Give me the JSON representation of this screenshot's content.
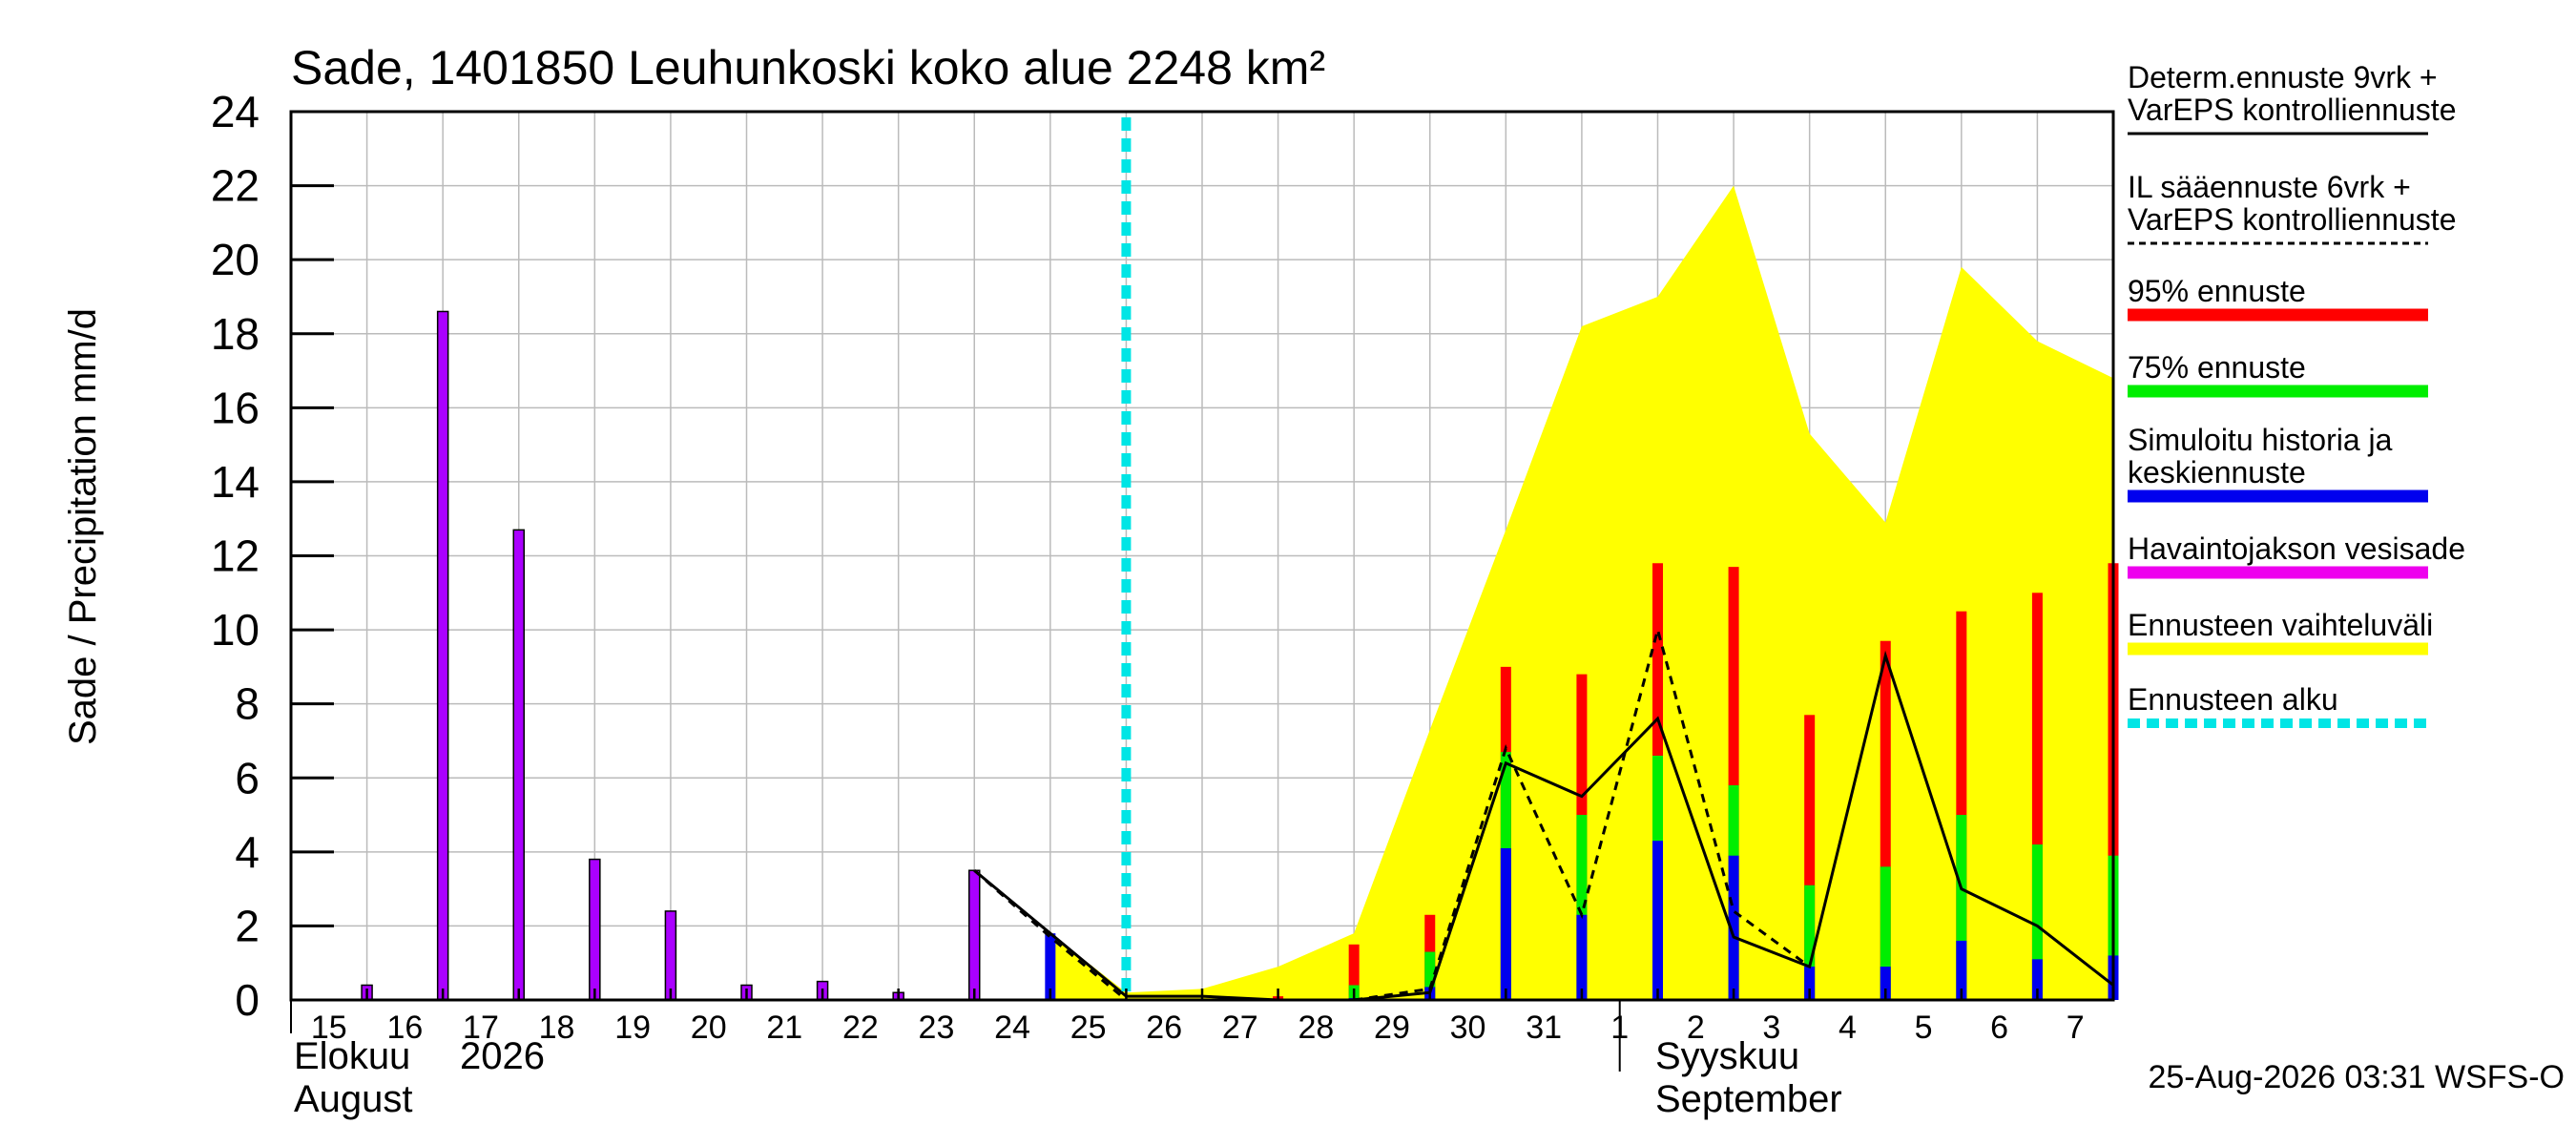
{
  "chart_data": {
    "type": "bar",
    "title": "Sade, 1401850 Leuhunkoski koko alue 2248 km²",
    "ylabel": "Sade / Precipitation   mm/d",
    "ylim": [
      0,
      24
    ],
    "yticks": [
      "0",
      "2",
      "4",
      "6",
      "8",
      "10",
      "12",
      "14",
      "16",
      "18",
      "20",
      "22",
      "24"
    ],
    "grid": true,
    "legend_position": "right",
    "x_day_labels": [
      "15",
      "16",
      "17",
      "18",
      "19",
      "20",
      "21",
      "22",
      "23",
      "24",
      "25",
      "26",
      "27",
      "28",
      "29",
      "30",
      "31",
      "1",
      "2",
      "3",
      "4",
      "5",
      "6",
      "7"
    ],
    "month_labels": {
      "aug_fi": "Elokuu",
      "aug_en": "August",
      "year": "2026",
      "sep_fi": "Syyskuu",
      "sep_en": "September"
    },
    "forecast_start": "25",
    "timestamp": "25-Aug-2026 03:31 WSFS-O",
    "observed_precipitation": {
      "days": [
        "15",
        "16",
        "17",
        "18",
        "19",
        "20",
        "21",
        "22",
        "23"
      ],
      "values": [
        0.4,
        18.6,
        12.7,
        3.8,
        2.4,
        0.4,
        0.5,
        0.2,
        3.5
      ]
    },
    "simulated_mean": {
      "days": [
        "24",
        "28",
        "29",
        "30",
        "31",
        "1",
        "2",
        "3",
        "4",
        "5",
        "6",
        "7",
        "8"
      ],
      "values": [
        1.8,
        0.05,
        0.35,
        4.1,
        2.3,
        4.3,
        3.9,
        0.9,
        0.9,
        1.6,
        1.1,
        0.4,
        1.2
      ]
    },
    "forecast_75": {
      "days": [
        "28",
        "29",
        "30",
        "31",
        "1",
        "2",
        "3",
        "4",
        "5",
        "6",
        "7",
        "8"
      ],
      "values": [
        0.4,
        1.3,
        6.7,
        5.0,
        6.6,
        5.8,
        3.1,
        3.6,
        5.0,
        4.2,
        3.6,
        3.9
      ]
    },
    "forecast_95": {
      "days": [
        "27",
        "28",
        "29",
        "30",
        "31",
        "1",
        "2",
        "3",
        "4",
        "5",
        "6",
        "7",
        "8"
      ],
      "values": [
        0.1,
        1.5,
        2.3,
        9.0,
        8.8,
        11.8,
        11.7,
        7.7,
        9.7,
        10.5,
        11.0,
        11.3,
        11.8
      ]
    },
    "forecast_range_upper": {
      "days": [
        "24",
        "25",
        "26",
        "27",
        "28",
        "29",
        "30",
        "31",
        "1",
        "2",
        "3",
        "4",
        "5",
        "6",
        "7",
        "8"
      ],
      "values": [
        1.8,
        0.2,
        0.3,
        0.9,
        1.8,
        7.3,
        12.7,
        18.2,
        19.0,
        22.0,
        15.3,
        12.9,
        19.8,
        17.8,
        16.8,
        21.0
      ]
    },
    "deterministic_9d": {
      "days": [
        "23",
        "24",
        "25",
        "26",
        "27",
        "28",
        "29",
        "30",
        "31",
        "1",
        "2",
        "3",
        "4",
        "5",
        "6",
        "7",
        "8"
      ],
      "values": [
        3.5,
        1.8,
        0.1,
        0.1,
        0.0,
        0.0,
        0.2,
        6.4,
        5.5,
        7.6,
        1.7,
        0.9,
        9.3,
        3.0,
        2.0,
        0.4,
        12.4
      ]
    },
    "il_forecast_6d": {
      "days": [
        "23",
        "24",
        "25",
        "26",
        "27",
        "28",
        "29",
        "30",
        "31",
        "1",
        "2",
        "3",
        "4",
        "5",
        "6",
        "7",
        "8"
      ],
      "values": [
        3.5,
        1.7,
        0.0,
        0.0,
        0.0,
        0.0,
        0.3,
        6.8,
        2.3,
        10.0,
        2.4,
        0.9,
        null,
        null,
        null,
        0.4,
        0.3
      ]
    },
    "legend": [
      {
        "label_line1": "Determ.ennuste 9vrk  +",
        "label_line2": "VarEPS kontrolliennuste",
        "style": "line",
        "color": "#000000"
      },
      {
        "label_line1": "IL sääennuste 6vrk  +",
        "label_line2": "VarEPS kontrolliennuste",
        "style": "dashed",
        "color": "#000000"
      },
      {
        "label_line1": "95% ennuste",
        "label_line2": "",
        "style": "bar",
        "color": "#ff0000"
      },
      {
        "label_line1": "75% ennuste",
        "label_line2": "",
        "style": "bar",
        "color": "#00ee00"
      },
      {
        "label_line1": "Simuloitu historia ja",
        "label_line2": "keskiennuste",
        "style": "bar",
        "color": "#0000ee"
      },
      {
        "label_line1": "Havaintojakson vesisade",
        "label_line2": "",
        "style": "bar",
        "color": "#ee00ee"
      },
      {
        "label_line1": "Ennusteen vaihteluväli",
        "label_line2": "",
        "style": "bar",
        "color": "#ffff00"
      },
      {
        "label_line1": "Ennusteen alku",
        "label_line2": "",
        "style": "dotted",
        "color": "#00e5e5"
      }
    ],
    "colors": {
      "observed": "#aa00ff",
      "observed_edge": "#000000",
      "mean": "#0000ee",
      "p75": "#00ee00",
      "p95": "#ff0000",
      "range": "#ffff00",
      "forecast_start": "#00e5e5",
      "grid": "#bbbbbb"
    }
  }
}
